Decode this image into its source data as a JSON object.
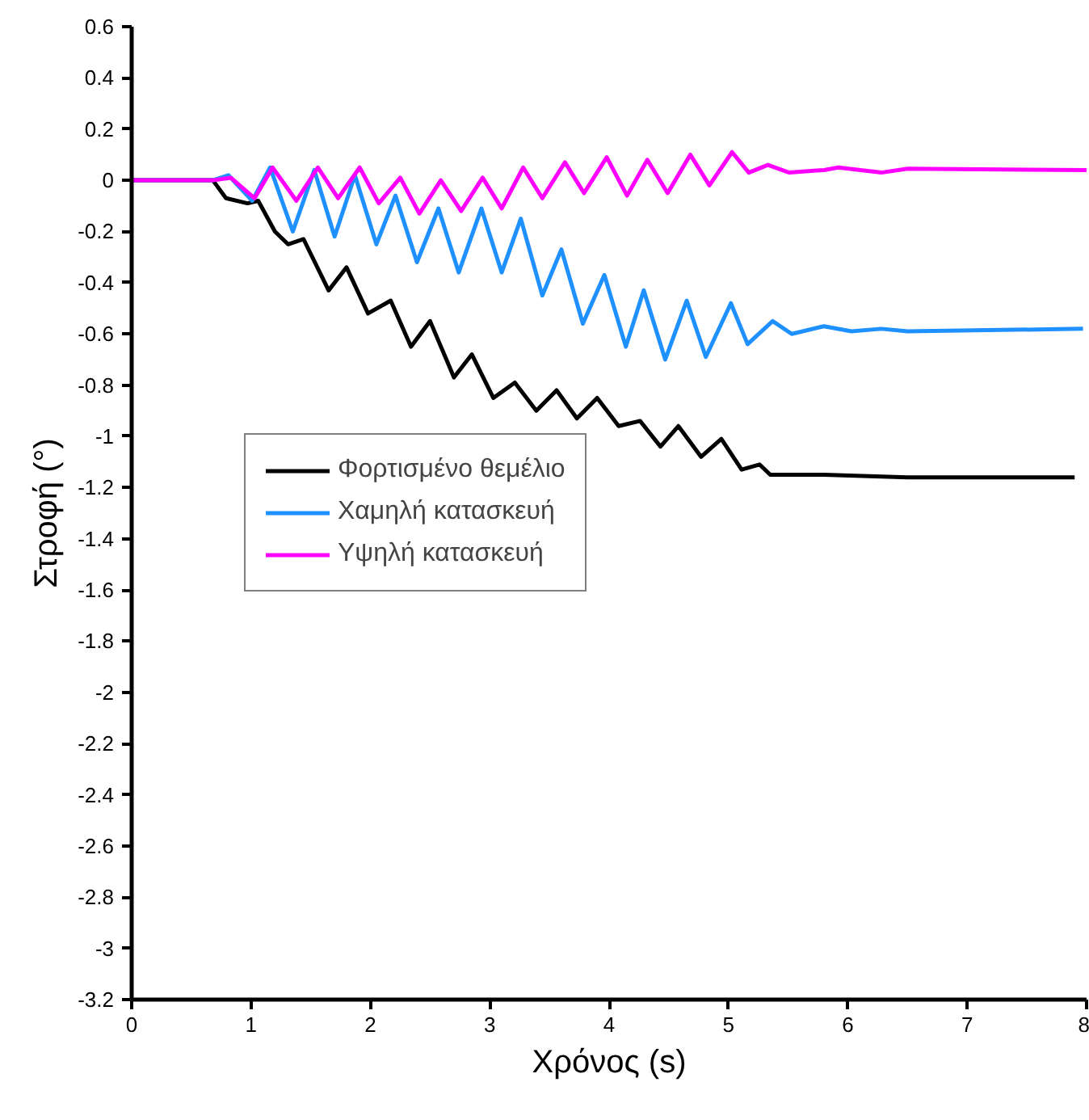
{
  "chart_data": {
    "type": "line",
    "xlabel": "Χρόνος (s)",
    "ylabel": "Στροφή (°)",
    "xlim": [
      0,
      8
    ],
    "xticks": [
      0,
      1,
      2,
      3,
      4,
      5,
      6,
      7,
      8
    ],
    "ylim": [
      -3.2,
      0.6
    ],
    "yticks": [
      0.6,
      0.4,
      0.2,
      0,
      -0.2,
      -0.4,
      -0.6,
      -0.8,
      -1,
      -1.2,
      -1.4,
      -1.6,
      -1.8,
      -2,
      -2.2,
      -2.4,
      -2.6,
      -2.8,
      -3,
      -3.2
    ],
    "grid": false,
    "legend": "center left",
    "marker": "none",
    "line_style": "solid",
    "series": [
      {
        "name": "Φορτισμένο θεμέλιο",
        "color": "#000000",
        "x": [
          0,
          0.68,
          0.79,
          0.97,
          1.06,
          1.2,
          1.31,
          1.44,
          1.65,
          1.8,
          1.98,
          2.17,
          2.34,
          2.5,
          2.7,
          2.85,
          3.03,
          3.21,
          3.39,
          3.56,
          3.73,
          3.9,
          4.08,
          4.26,
          4.43,
          4.58,
          4.77,
          4.94,
          5.11,
          5.26,
          5.35,
          5.8,
          6.5,
          7.9
        ],
        "values": [
          0,
          0,
          -0.07,
          -0.09,
          -0.08,
          -0.2,
          -0.25,
          -0.23,
          -0.43,
          -0.34,
          -0.52,
          -0.47,
          -0.65,
          -0.55,
          -0.77,
          -0.68,
          -0.85,
          -0.79,
          -0.9,
          -0.82,
          -0.93,
          -0.85,
          -0.96,
          -0.94,
          -1.04,
          -0.96,
          -1.08,
          -1.01,
          -1.13,
          -1.11,
          -1.15,
          -1.15,
          -1.16,
          -1.16
        ]
      },
      {
        "name": "Χαμηλή κατασκευή",
        "color": "#1e90ff",
        "x": [
          0,
          0.68,
          0.81,
          1.01,
          1.16,
          1.35,
          1.53,
          1.7,
          1.87,
          2.05,
          2.21,
          2.39,
          2.57,
          2.74,
          2.93,
          3.1,
          3.26,
          3.44,
          3.6,
          3.78,
          3.96,
          4.14,
          4.29,
          4.47,
          4.65,
          4.81,
          5.02,
          5.16,
          5.37,
          5.53,
          5.8,
          6.03,
          6.28,
          6.5,
          7.97
        ],
        "values": [
          0,
          0,
          0.02,
          -0.08,
          0.05,
          -0.2,
          0.04,
          -0.22,
          0.02,
          -0.25,
          -0.06,
          -0.32,
          -0.11,
          -0.36,
          -0.11,
          -0.36,
          -0.15,
          -0.45,
          -0.27,
          -0.56,
          -0.37,
          -0.65,
          -0.43,
          -0.7,
          -0.47,
          -0.69,
          -0.48,
          -0.64,
          -0.55,
          -0.6,
          -0.57,
          -0.59,
          -0.58,
          -0.59,
          -0.58
        ]
      },
      {
        "name": "Υψηλή κατασκευή",
        "color": "#ff00ff",
        "x": [
          0,
          0.68,
          0.83,
          1.03,
          1.18,
          1.38,
          1.56,
          1.73,
          1.91,
          2.07,
          2.25,
          2.41,
          2.59,
          2.76,
          2.94,
          3.1,
          3.28,
          3.44,
          3.63,
          3.79,
          3.98,
          4.15,
          4.32,
          4.49,
          4.68,
          4.84,
          5.03,
          5.17,
          5.33,
          5.51,
          5.8,
          5.92,
          6.28,
          6.5,
          8
        ],
        "values": [
          0,
          0,
          0.01,
          -0.07,
          0.05,
          -0.08,
          0.05,
          -0.07,
          0.05,
          -0.09,
          0.01,
          -0.13,
          0,
          -0.12,
          0.01,
          -0.11,
          0.05,
          -0.07,
          0.07,
          -0.05,
          0.09,
          -0.06,
          0.08,
          -0.05,
          0.1,
          -0.02,
          0.11,
          0.03,
          0.06,
          0.03,
          0.04,
          0.05,
          0.03,
          0.045,
          0.04
        ]
      }
    ]
  }
}
